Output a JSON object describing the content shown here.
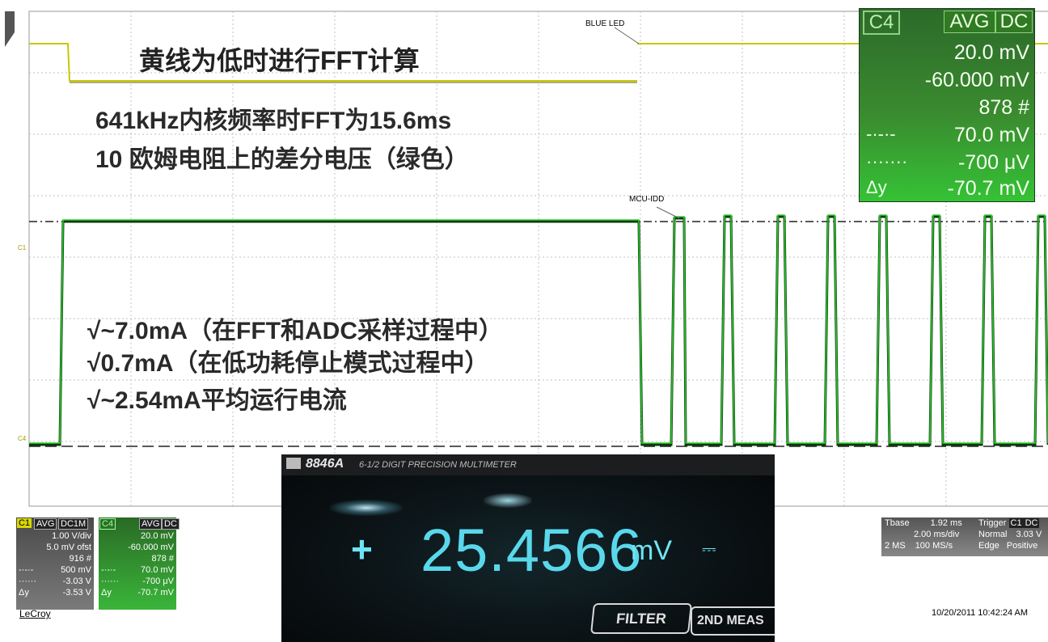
{
  "overlay": {
    "title": "黄线为低时进行FFT计算",
    "line1": "641kHz内核频率时FFT为15.6ms",
    "line2": "10 欧姆电阻上的差分电压（绿色）",
    "bullet1": "√~7.0mA（在FFT和ADC采样过程中）",
    "bullet2": "√0.7mA（在低功耗停止模式过程中）",
    "bullet3": "√~2.54mA平均运行电流"
  },
  "labels": {
    "blue_led": "BLUE LED",
    "mcu_idd": "MCU-IDD",
    "c1_marker": "C1",
    "c4_marker": "C4"
  },
  "measure_panel": {
    "channel": "C4",
    "avg": "AVG",
    "dc": "DC",
    "rows": [
      {
        "key": "",
        "value": "20.0 mV"
      },
      {
        "key": "",
        "value": "-60.000 mV"
      },
      {
        "key": "",
        "value": "878 #"
      },
      {
        "key": "-·-·-",
        "value": "70.0 mV"
      },
      {
        "key": "·······",
        "value": "-700 μV"
      },
      {
        "key": "Δy",
        "value": "-70.7 mV"
      }
    ]
  },
  "c1_panel": {
    "channel": "C1",
    "avg": "AVG",
    "coupling": "DC1M",
    "rows": [
      {
        "key": "",
        "value": "1.00 V/div"
      },
      {
        "key": "",
        "value": "5.0 mV ofst"
      },
      {
        "key": "",
        "value": "916 #"
      },
      {
        "key": "-·-·-",
        "value": "500 mV"
      },
      {
        "key": "······",
        "value": "-3.03 V"
      },
      {
        "key": "Δy",
        "value": "-3.53 V"
      }
    ]
  },
  "c4_panel": {
    "channel": "C4",
    "avg": "AVG",
    "coupling": "DC",
    "rows": [
      {
        "key": "",
        "value": "20.0 mV"
      },
      {
        "key": "",
        "value": "-60.000 mV"
      },
      {
        "key": "",
        "value": "878 #"
      },
      {
        "key": "-·-·-",
        "value": "70.0 mV"
      },
      {
        "key": "······",
        "value": "-700 μV"
      },
      {
        "key": "Δy",
        "value": "-70.7 mV"
      }
    ]
  },
  "brand": "LeCroy",
  "multimeter": {
    "model": "8846A",
    "description": "6-1/2 DIGIT PRECISION MULTIMETER",
    "sign": "+",
    "value": "25.4566",
    "unit": "mV",
    "dc_symbol": "⎓",
    "filter_button": "FILTER",
    "second_button": "2ND MEAS"
  },
  "timebase": {
    "label": "Tbase",
    "delay": "1.92 ms",
    "div": "2.00 ms/div",
    "samples": "2 MS",
    "rate": "100 MS/s"
  },
  "trigger": {
    "label": "Trigger",
    "ch": "C1",
    "coupling": "DC",
    "mode": "Normal",
    "level": "3.03 V",
    "type": "Edge",
    "slope": "Positive"
  },
  "timestamp": "10/20/2011 10:42:24 AM",
  "colors": {
    "yellow_trace": "#c8c800",
    "green_trace": "#1a8a1a",
    "dark_trace": "#0d3a0d",
    "grid": "#b8b8b8",
    "lcd_cyan": "#59d8ec"
  }
}
